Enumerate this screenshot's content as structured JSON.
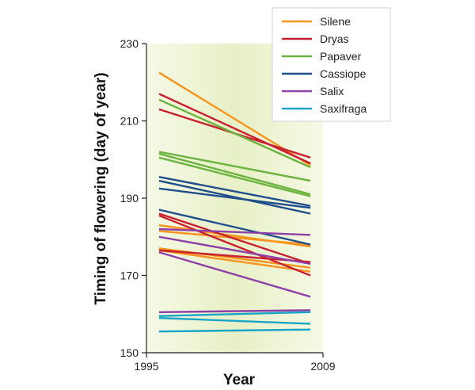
{
  "chart_data": {
    "type": "line",
    "title": "",
    "xlabel": "Year",
    "ylabel": "Timing of flowering (day of year)",
    "xlim": [
      1995,
      2009
    ],
    "ylim": [
      150,
      230
    ],
    "xticks": [
      1995,
      2009
    ],
    "yticks": [
      150,
      170,
      190,
      210,
      230
    ],
    "x_start": 1996,
    "x_end": 2008,
    "legend_position": "top-right",
    "background_color": "#e9f2c9",
    "legend": [
      {
        "name": "Silene",
        "color": "#f7941d"
      },
      {
        "name": "Dryas",
        "color": "#c8202f"
      },
      {
        "name": "Papaver",
        "color": "#6cb33f"
      },
      {
        "name": "Cassiope",
        "color": "#1f4e8c"
      },
      {
        "name": "Salix",
        "color": "#8e3fa8"
      },
      {
        "name": "Saxifraga",
        "color": "#1aa5c8"
      }
    ],
    "series": [
      {
        "name": "Silene",
        "color": "#f7941d",
        "values": [
          222.5,
          198.5
        ]
      },
      {
        "name": "Silene",
        "color": "#f7941d",
        "values": [
          183.0,
          177.5
        ]
      },
      {
        "name": "Silene",
        "color": "#f7941d",
        "values": [
          181.5,
          178.0
        ]
      },
      {
        "name": "Silene",
        "color": "#f7941d",
        "values": [
          177.0,
          172.0
        ]
      },
      {
        "name": "Silene",
        "color": "#f7941d",
        "values": [
          176.5,
          171.0
        ]
      },
      {
        "name": "Dryas",
        "color": "#c8202f",
        "values": [
          217.0,
          199.0
        ]
      },
      {
        "name": "Dryas",
        "color": "#c8202f",
        "values": [
          213.0,
          200.5
        ]
      },
      {
        "name": "Dryas",
        "color": "#c8202f",
        "values": [
          186.0,
          173.0
        ]
      },
      {
        "name": "Dryas",
        "color": "#c8202f",
        "values": [
          185.5,
          170.0
        ]
      },
      {
        "name": "Dryas",
        "color": "#c8202f",
        "values": [
          176.5,
          173.5
        ]
      },
      {
        "name": "Papaver",
        "color": "#6cb33f",
        "values": [
          215.5,
          198.0
        ]
      },
      {
        "name": "Papaver",
        "color": "#6cb33f",
        "values": [
          202.0,
          194.5
        ]
      },
      {
        "name": "Papaver",
        "color": "#6cb33f",
        "values": [
          201.5,
          191.0
        ]
      },
      {
        "name": "Papaver",
        "color": "#6cb33f",
        "values": [
          200.5,
          190.5
        ]
      },
      {
        "name": "Cassiope",
        "color": "#1f4e8c",
        "values": [
          195.5,
          188.0
        ]
      },
      {
        "name": "Cassiope",
        "color": "#1f4e8c",
        "values": [
          194.5,
          186.0
        ]
      },
      {
        "name": "Cassiope",
        "color": "#1f4e8c",
        "values": [
          192.5,
          187.5
        ]
      },
      {
        "name": "Cassiope",
        "color": "#1f4e8c",
        "values": [
          187.0,
          178.0
        ]
      },
      {
        "name": "Salix",
        "color": "#8e3fa8",
        "values": [
          182.0,
          180.5
        ]
      },
      {
        "name": "Salix",
        "color": "#8e3fa8",
        "values": [
          180.0,
          173.0
        ]
      },
      {
        "name": "Salix",
        "color": "#8e3fa8",
        "values": [
          176.0,
          164.5
        ]
      },
      {
        "name": "Salix",
        "color": "#8e3fa8",
        "values": [
          160.5,
          161.0
        ]
      },
      {
        "name": "Saxifraga",
        "color": "#1aa5c8",
        "values": [
          159.5,
          160.5
        ]
      },
      {
        "name": "Saxifraga",
        "color": "#1aa5c8",
        "values": [
          159.0,
          157.5
        ]
      },
      {
        "name": "Saxifraga",
        "color": "#1aa5c8",
        "values": [
          155.5,
          156.0
        ]
      }
    ]
  }
}
